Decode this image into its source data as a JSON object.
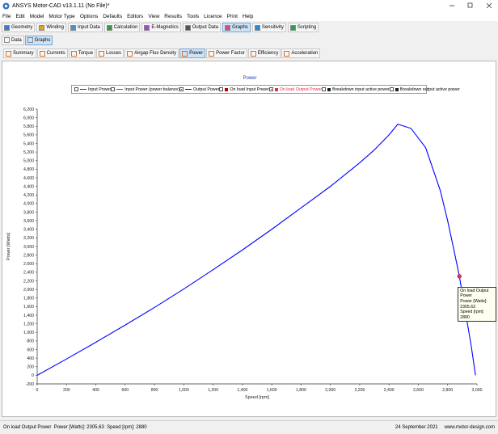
{
  "title_bar": {
    "title": "ANSYS Motor-CAD v13.1.11 (No File)*"
  },
  "menu": [
    "File",
    "Edit",
    "Model",
    "Motor Type",
    "Options",
    "Defaults",
    "Editors",
    "View",
    "Results",
    "Tools",
    "Licence",
    "Print",
    "Help"
  ],
  "toolbar": {
    "items": [
      "Geometry",
      "Winding",
      "Input Data",
      "Calculation",
      "E-Magnetics",
      "Output Data",
      "Graphs",
      "Sensitivity",
      "Scripting"
    ],
    "selected": 6
  },
  "tabs": {
    "items": [
      "Data",
      "Graphs"
    ],
    "selected": 1
  },
  "subtabs": {
    "items": [
      "Summary",
      "Currents",
      "Torque",
      "Losses",
      "Airgap Flux Density",
      "Power",
      "Power Factor",
      "Efficiency",
      "Acceleration"
    ],
    "selected": 5
  },
  "chart_data": {
    "type": "line",
    "title": "Power",
    "x_label": "Speed [rpm]",
    "y_label": "Power [Watts]",
    "xlim": [
      0,
      3000
    ],
    "ylim": [
      -200,
      6200
    ],
    "xticks": [
      0,
      200,
      400,
      600,
      800,
      {
        "value": 1000,
        "label": "1,000"
      },
      {
        "value": 1200,
        "label": "1,200"
      },
      {
        "value": 1400,
        "label": "1,400"
      },
      {
        "value": 1600,
        "label": "1,600"
      },
      {
        "value": 1800,
        "label": "1,800"
      },
      {
        "value": 2000,
        "label": "2,000"
      },
      {
        "value": 2200,
        "label": "2,200"
      },
      {
        "value": 2400,
        "label": "2,400"
      },
      {
        "value": 2600,
        "label": "2,600"
      },
      {
        "value": 2800,
        "label": "2,800"
      },
      {
        "value": 3000,
        "label": "3,000"
      }
    ],
    "yticks": [
      -200,
      0,
      200,
      400,
      600,
      800,
      {
        "value": 1000,
        "label": "1,000"
      },
      {
        "value": 1200,
        "label": "1,200"
      },
      {
        "value": 1400,
        "label": "1,400"
      },
      {
        "value": 1600,
        "label": "1,600"
      },
      {
        "value": 1800,
        "label": "1,800"
      },
      {
        "value": 2000,
        "label": "2,000"
      },
      {
        "value": 2200,
        "label": "2,200"
      },
      {
        "value": 2400,
        "label": "2,400"
      },
      {
        "value": 2600,
        "label": "2,600"
      },
      {
        "value": 2800,
        "label": "2,800"
      },
      {
        "value": 3000,
        "label": "3,000"
      },
      {
        "value": 3200,
        "label": "3,200"
      },
      {
        "value": 3400,
        "label": "3,400"
      },
      {
        "value": 3600,
        "label": "3,600"
      },
      {
        "value": 3800,
        "label": "3,800"
      },
      {
        "value": 4000,
        "label": "4,000"
      },
      {
        "value": 4200,
        "label": "4,200"
      },
      {
        "value": 4400,
        "label": "4,400"
      },
      {
        "value": 4600,
        "label": "4,600"
      },
      {
        "value": 4800,
        "label": "4,800"
      },
      {
        "value": 5000,
        "label": "5,000"
      },
      {
        "value": 5200,
        "label": "5,200"
      },
      {
        "value": 5400,
        "label": "5,400"
      },
      {
        "value": 5600,
        "label": "5,600"
      },
      {
        "value": 5800,
        "label": "5,800"
      },
      {
        "value": 6000,
        "label": "6,000"
      },
      {
        "value": 6200,
        "label": "6,200"
      }
    ],
    "grid": false,
    "series": [
      {
        "name": "Input Power",
        "color": "#c00000",
        "style": "line",
        "checked": false,
        "x": [],
        "values": []
      },
      {
        "name": "Input Power (power balance)",
        "color": "#00a000",
        "style": "line",
        "checked": false,
        "x": [],
        "values": []
      },
      {
        "name": "Output Power",
        "color": "#0000ff",
        "style": "line",
        "checked": true,
        "x": [
          0,
          200,
          400,
          600,
          800,
          1000,
          1200,
          1400,
          1600,
          1800,
          2000,
          2200,
          2300,
          2400,
          2460,
          2550,
          2650,
          2750,
          2800,
          2850,
          2880,
          2920,
          2960,
          2990
        ],
        "values": [
          0,
          380,
          770,
          1170,
          1580,
          2010,
          2460,
          2920,
          3400,
          3900,
          4400,
          4950,
          5250,
          5600,
          5850,
          5750,
          5300,
          4300,
          3600,
          2800,
          2305.63,
          1500,
          700,
          0
        ]
      },
      {
        "name": "On load Input Power",
        "color": "#c00000",
        "style": "marker",
        "checked": false,
        "x": [],
        "values": []
      },
      {
        "name": "On load Output Power",
        "color": "#e0304f",
        "style": "marker",
        "checked": true,
        "x": [
          2880
        ],
        "values": [
          2305.63
        ]
      },
      {
        "name": "Breakdown input active power",
        "color": "#202020",
        "style": "marker",
        "checked": false,
        "x": [],
        "values": []
      },
      {
        "name": "Breakdown output active power",
        "color": "#202020",
        "style": "marker",
        "checked": false,
        "x": [],
        "values": []
      }
    ],
    "annotation": {
      "lines": [
        "On load Output Power",
        "Power [Watts]: 2305.63",
        "Speed [rpm]: 2880"
      ]
    }
  },
  "status_bar": {
    "message": "On load Output Power  Power [Watts]: 2305.63  Speed [rpm]: 2880",
    "date": "24 September 2021",
    "website": "www.motor-design.com"
  }
}
